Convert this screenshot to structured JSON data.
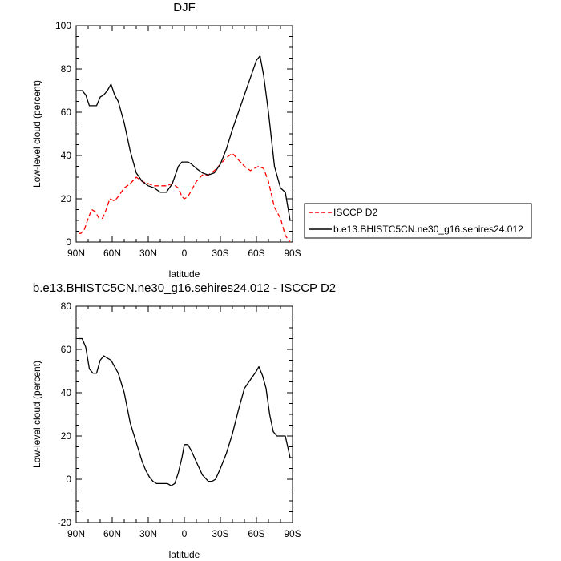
{
  "chart_data": [
    {
      "type": "line",
      "title": "DJF",
      "xlabel": "latitude",
      "ylabel": "Low-level cloud (percent)",
      "xlim": [
        90,
        -90
      ],
      "ylim": [
        0,
        100
      ],
      "x_tick_labels": [
        "90N",
        "60N",
        "30N",
        "0",
        "30S",
        "60S",
        "90S"
      ],
      "y_tick_labels": [
        "0",
        "20",
        "40",
        "60",
        "80",
        "100"
      ],
      "legend_position": "right",
      "series": [
        {
          "name": "ISCCP D2",
          "color": "#ff0000",
          "dash": "dashed",
          "x": [
            88,
            86,
            83,
            80,
            77,
            74,
            71,
            68,
            65,
            62,
            58,
            55,
            50,
            45,
            40,
            35,
            30,
            25,
            20,
            15,
            10,
            5,
            2,
            0,
            -3,
            -6,
            -10,
            -15,
            -20,
            -25,
            -30,
            -35,
            -40,
            -45,
            -50,
            -55,
            -58,
            -62,
            -66,
            -70,
            -75,
            -80,
            -84,
            -88
          ],
          "y": [
            4,
            4,
            6,
            11,
            15,
            14,
            11,
            11,
            15,
            20,
            19,
            21,
            25,
            27,
            30,
            28,
            27,
            26,
            26,
            26,
            27,
            25,
            21,
            20,
            21,
            24,
            28,
            31,
            31,
            33,
            36,
            39,
            41,
            38,
            35,
            33,
            34,
            35,
            34,
            28,
            16,
            11,
            3,
            0
          ]
        },
        {
          "name": "b.e13.BHISTC5CN.ne30_g16.sehires24.012",
          "color": "#000000",
          "dash": "solid",
          "x": [
            88,
            85,
            82,
            79,
            76,
            73,
            70,
            67,
            64,
            61,
            58,
            55,
            50,
            45,
            40,
            35,
            30,
            25,
            20,
            15,
            10,
            5,
            2,
            0,
            -3,
            -6,
            -10,
            -15,
            -20,
            -25,
            -30,
            -35,
            -40,
            -45,
            -50,
            -55,
            -60,
            -63,
            -66,
            -70,
            -75,
            -80,
            -84,
            -88
          ],
          "y": [
            70,
            70,
            68,
            63,
            63,
            63,
            67,
            68,
            70,
            73,
            68,
            65,
            55,
            42,
            32,
            28,
            26,
            25,
            23,
            23,
            27,
            35,
            37,
            37,
            37,
            36,
            34,
            32,
            31,
            32,
            36,
            43,
            52,
            60,
            68,
            76,
            84,
            86,
            77,
            60,
            35,
            25,
            23,
            10
          ]
        }
      ]
    },
    {
      "type": "line",
      "title": "b.e13.BHISTC5CN.ne30_g16.sehires24.012 - ISCCP D2",
      "xlabel": "latitude",
      "ylabel": "Low-level cloud (percent)",
      "xlim": [
        90,
        -90
      ],
      "ylim": [
        -20,
        80
      ],
      "x_tick_labels": [
        "90N",
        "60N",
        "30N",
        "0",
        "30S",
        "60S",
        "90S"
      ],
      "y_tick_labels": [
        "-20",
        "0",
        "20",
        "40",
        "60",
        "80"
      ],
      "series": [
        {
          "color": "#000000",
          "dash": "solid",
          "x": [
            88,
            85,
            82,
            79,
            76,
            73,
            70,
            67,
            64,
            61,
            58,
            55,
            50,
            45,
            40,
            35,
            32,
            29,
            26,
            23,
            20,
            17,
            14,
            11,
            8,
            5,
            2,
            0,
            -3,
            -6,
            -10,
            -15,
            -20,
            -23,
            -26,
            -30,
            -35,
            -40,
            -45,
            -50,
            -55,
            -60,
            -62,
            -65,
            -68,
            -71,
            -74,
            -77,
            -80,
            -84,
            -88
          ],
          "y": [
            65,
            65,
            61,
            51,
            49,
            49,
            55,
            57,
            56,
            55,
            52,
            49,
            40,
            26,
            17,
            8,
            4,
            1,
            -1,
            -2,
            -2,
            -2,
            -2,
            -3,
            -2,
            3,
            10,
            16,
            16,
            13,
            8,
            2,
            -1,
            -1,
            0,
            5,
            12,
            21,
            32,
            42,
            46,
            50,
            52,
            48,
            42,
            30,
            22,
            20,
            20,
            20,
            10
          ]
        }
      ]
    }
  ]
}
